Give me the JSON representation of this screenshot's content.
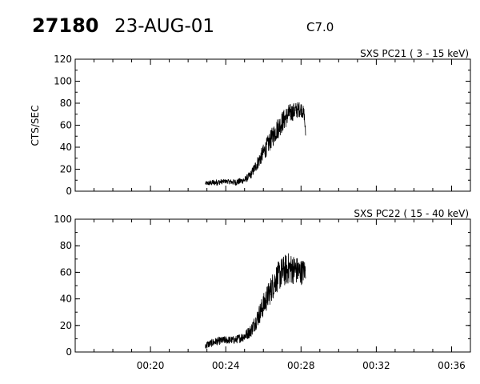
{
  "header": {
    "event_id": "27180",
    "date": "23-AUG-01",
    "flare_class": "C7.0"
  },
  "chart_data": [
    {
      "type": "line",
      "title": "SXS PC21  (  3 - 15 keV)",
      "xlabel": "",
      "ylabel": "CTS/SEC",
      "xlim": [
        "00:16",
        "00:37"
      ],
      "ylim": [
        0,
        120
      ],
      "x_ticks": [],
      "y_ticks": [
        "0",
        "20",
        "40",
        "60",
        "80",
        "100",
        "120"
      ],
      "grid": false,
      "series": [
        {
          "x": [
            "00:22:55",
            "00:23:30",
            "00:24:00",
            "00:24:30",
            "00:25:00",
            "00:25:20",
            "00:25:40",
            "00:26:00",
            "00:26:20",
            "00:26:40",
            "00:27:00",
            "00:27:20",
            "00:27:40",
            "00:28:00",
            "00:28:10",
            "00:28:15"
          ],
          "y": [
            7,
            8,
            9,
            8,
            10,
            15,
            25,
            35,
            45,
            55,
            63,
            70,
            73,
            75,
            70,
            50
          ],
          "noise": [
            2,
            3,
            2,
            3,
            3,
            4,
            6,
            8,
            9,
            10,
            10,
            9,
            8,
            7,
            6,
            3
          ]
        }
      ]
    },
    {
      "type": "line",
      "title": "SXS PC22  ( 15 - 40 keV)",
      "xlabel": "",
      "ylabel": "",
      "xlim": [
        "00:16",
        "00:37"
      ],
      "ylim": [
        0,
        100
      ],
      "x_ticks": [
        "00:20",
        "00:24",
        "00:28",
        "00:32",
        "00:36"
      ],
      "y_ticks": [
        "0",
        "20",
        "40",
        "60",
        "80",
        "100"
      ],
      "grid": false,
      "series": [
        {
          "x": [
            "00:22:55",
            "00:23:30",
            "00:24:00",
            "00:24:30",
            "00:25:00",
            "00:25:20",
            "00:25:40",
            "00:26:00",
            "00:26:20",
            "00:26:40",
            "00:27:00",
            "00:27:20",
            "00:27:40",
            "00:28:00",
            "00:28:15"
          ],
          "y": [
            5,
            8,
            9,
            9,
            12,
            16,
            25,
            35,
            45,
            55,
            60,
            63,
            62,
            60,
            62
          ],
          "noise": [
            3,
            3,
            3,
            3,
            4,
            5,
            7,
            9,
            10,
            11,
            12,
            12,
            11,
            10,
            8
          ]
        }
      ]
    }
  ]
}
